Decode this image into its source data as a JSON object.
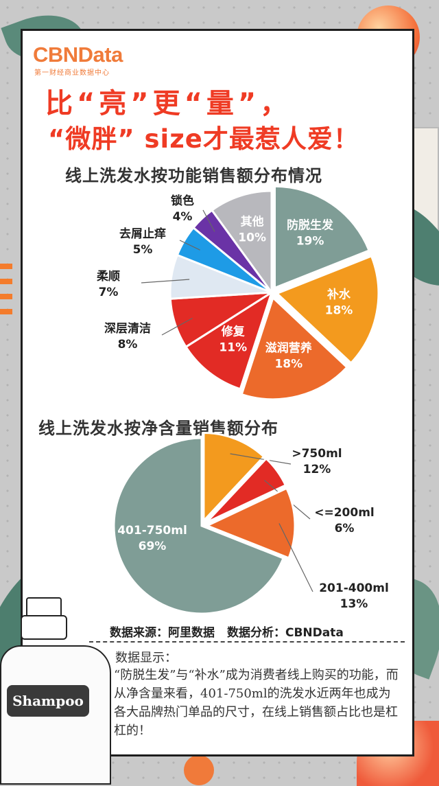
{
  "brand": {
    "name": "CBNData",
    "subtitle": "第一财经商业数据中心"
  },
  "headline": {
    "line1": "比“亮”更“量”，",
    "line2": "“微胖” size才最惹人爱！"
  },
  "colors": {
    "title_red": "#ef3b24",
    "brand_orange": "#f07b3a",
    "green_gray": "#7f9d96",
    "orange": "#f39a1e",
    "deep_orange": "#ec6a2b",
    "red": "#e22b25",
    "light_blue": "#dfe8f2",
    "sky_blue": "#1e9be6",
    "purple": "#6a33a6",
    "gray": "#b8b8bd"
  },
  "chart_data": [
    {
      "type": "pie",
      "title": "线上洗发水按功能销售额分布情况",
      "slices": [
        {
          "label": "防脱生发",
          "value": 19,
          "display": "19%",
          "color": "#7f9d96",
          "exploded": true,
          "label_inside": true,
          "label_color": "#ffffff"
        },
        {
          "label": "补水",
          "value": 18,
          "display": "18%",
          "color": "#f39a1e",
          "exploded": true,
          "label_inside": true,
          "label_color": "#ffffff"
        },
        {
          "label": "滋润营养",
          "value": 18,
          "display": "18%",
          "color": "#ec6a2b",
          "exploded": true,
          "label_inside": true,
          "label_color": "#ffffff"
        },
        {
          "label": "修复",
          "value": 11,
          "display": "11%",
          "color": "#e22b25",
          "exploded": false,
          "label_inside": true,
          "label_color": "#ffffff"
        },
        {
          "label": "深层清洁",
          "value": 8,
          "display": "8%",
          "color": "#e22b25",
          "exploded": false,
          "label_inside": false,
          "label_color": "#222222"
        },
        {
          "label": "柔顺",
          "value": 7,
          "display": "7%",
          "color": "#dfe8f2",
          "exploded": false,
          "label_inside": false,
          "label_color": "#222222"
        },
        {
          "label": "去屑止痒",
          "value": 5,
          "display": "5%",
          "color": "#1e9be6",
          "exploded": false,
          "label_inside": false,
          "label_color": "#222222"
        },
        {
          "label": "锁色",
          "value": 4,
          "display": "4%",
          "color": "#6a33a6",
          "exploded": false,
          "label_inside": false,
          "label_color": "#222222"
        },
        {
          "label": "其他",
          "value": 10,
          "display": "10%",
          "color": "#b8b8bd",
          "exploded": false,
          "label_inside": true,
          "label_color": "#ffffff"
        }
      ]
    },
    {
      "type": "pie",
      "title": "线上洗发水按净含量销售额分布",
      "slices": [
        {
          "label": ">750ml",
          "value": 12,
          "display": "12%",
          "color": "#f39a1e",
          "exploded": true,
          "label_inside": false,
          "label_color": "#222222"
        },
        {
          "label": "<=200ml",
          "value": 6,
          "display": "6%",
          "color": "#e22b25",
          "exploded": true,
          "label_inside": false,
          "label_color": "#222222"
        },
        {
          "label": "201-400ml",
          "value": 13,
          "display": "13%",
          "color": "#ec6a2b",
          "exploded": true,
          "label_inside": false,
          "label_color": "#222222"
        },
        {
          "label": "401-750ml",
          "value": 69,
          "display": "69%",
          "color": "#7f9d96",
          "exploded": false,
          "label_inside": true,
          "label_color": "#ffffff"
        }
      ]
    }
  ],
  "source": {
    "data_source": "数据来源：阿里数据",
    "data_analysis": "数据分析：CBNData"
  },
  "note": {
    "title": "数据显示：",
    "body": "“防脱生发”与“补水”成为消费者线上购买的功能，而从净含量来看，401-750ml的洗发水近两年也成为各大品牌热门单品的尺寸，在线上销售额占比也是杠杠的！"
  },
  "bottle_label": "Shampoo"
}
